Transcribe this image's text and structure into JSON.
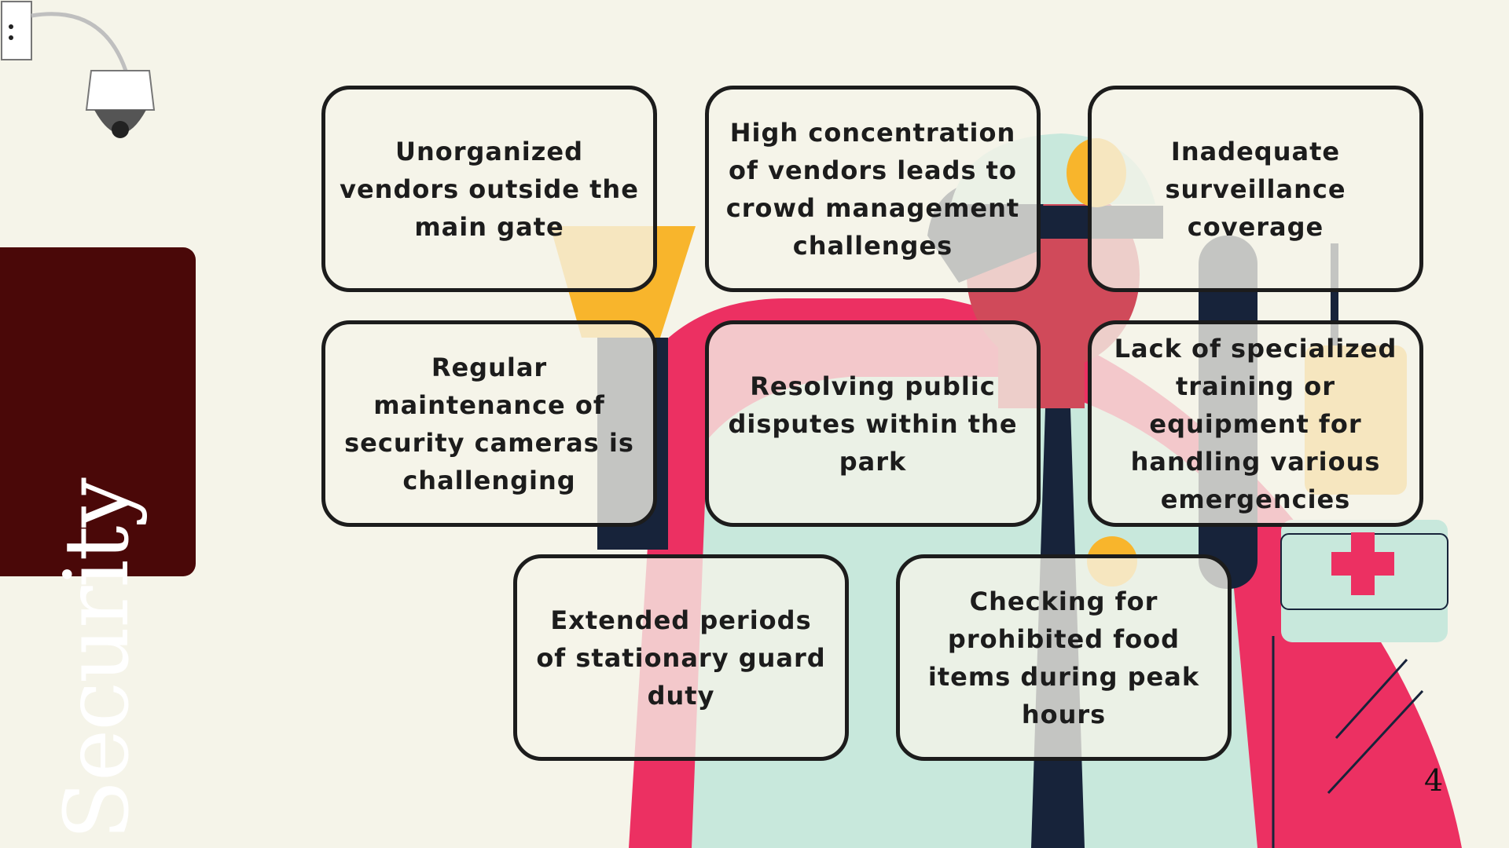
{
  "slide": {
    "title": "Security",
    "page_number": "4",
    "colors": {
      "background": "#f5f4e9",
      "title_panel": "#4a0808",
      "accent_red": "#ec3062",
      "accent_mint": "#c8e8dc",
      "accent_yellow": "#f8b52c",
      "outline": "#1c1c1c"
    }
  },
  "cards": [
    {
      "text": "Unorganized vendors outside the main gate"
    },
    {
      "text": "High concentration of vendors leads to crowd management challenges"
    },
    {
      "text": "Inadequate surveillance coverage"
    },
    {
      "text": "Regular maintenance of security cameras is challenging"
    },
    {
      "text": "Resolving public disputes within the park"
    },
    {
      "text": "Lack of specialized training or equipment for handling various emergencies"
    },
    {
      "text": "Extended periods of stationary guard duty"
    },
    {
      "text": "Checking for prohibited food items during peak hours"
    }
  ],
  "icons": [
    "security-camera-icon",
    "security-guard-illustration",
    "first-aid-kit-icon",
    "flashlight-icon",
    "walkie-talkie-icon"
  ]
}
